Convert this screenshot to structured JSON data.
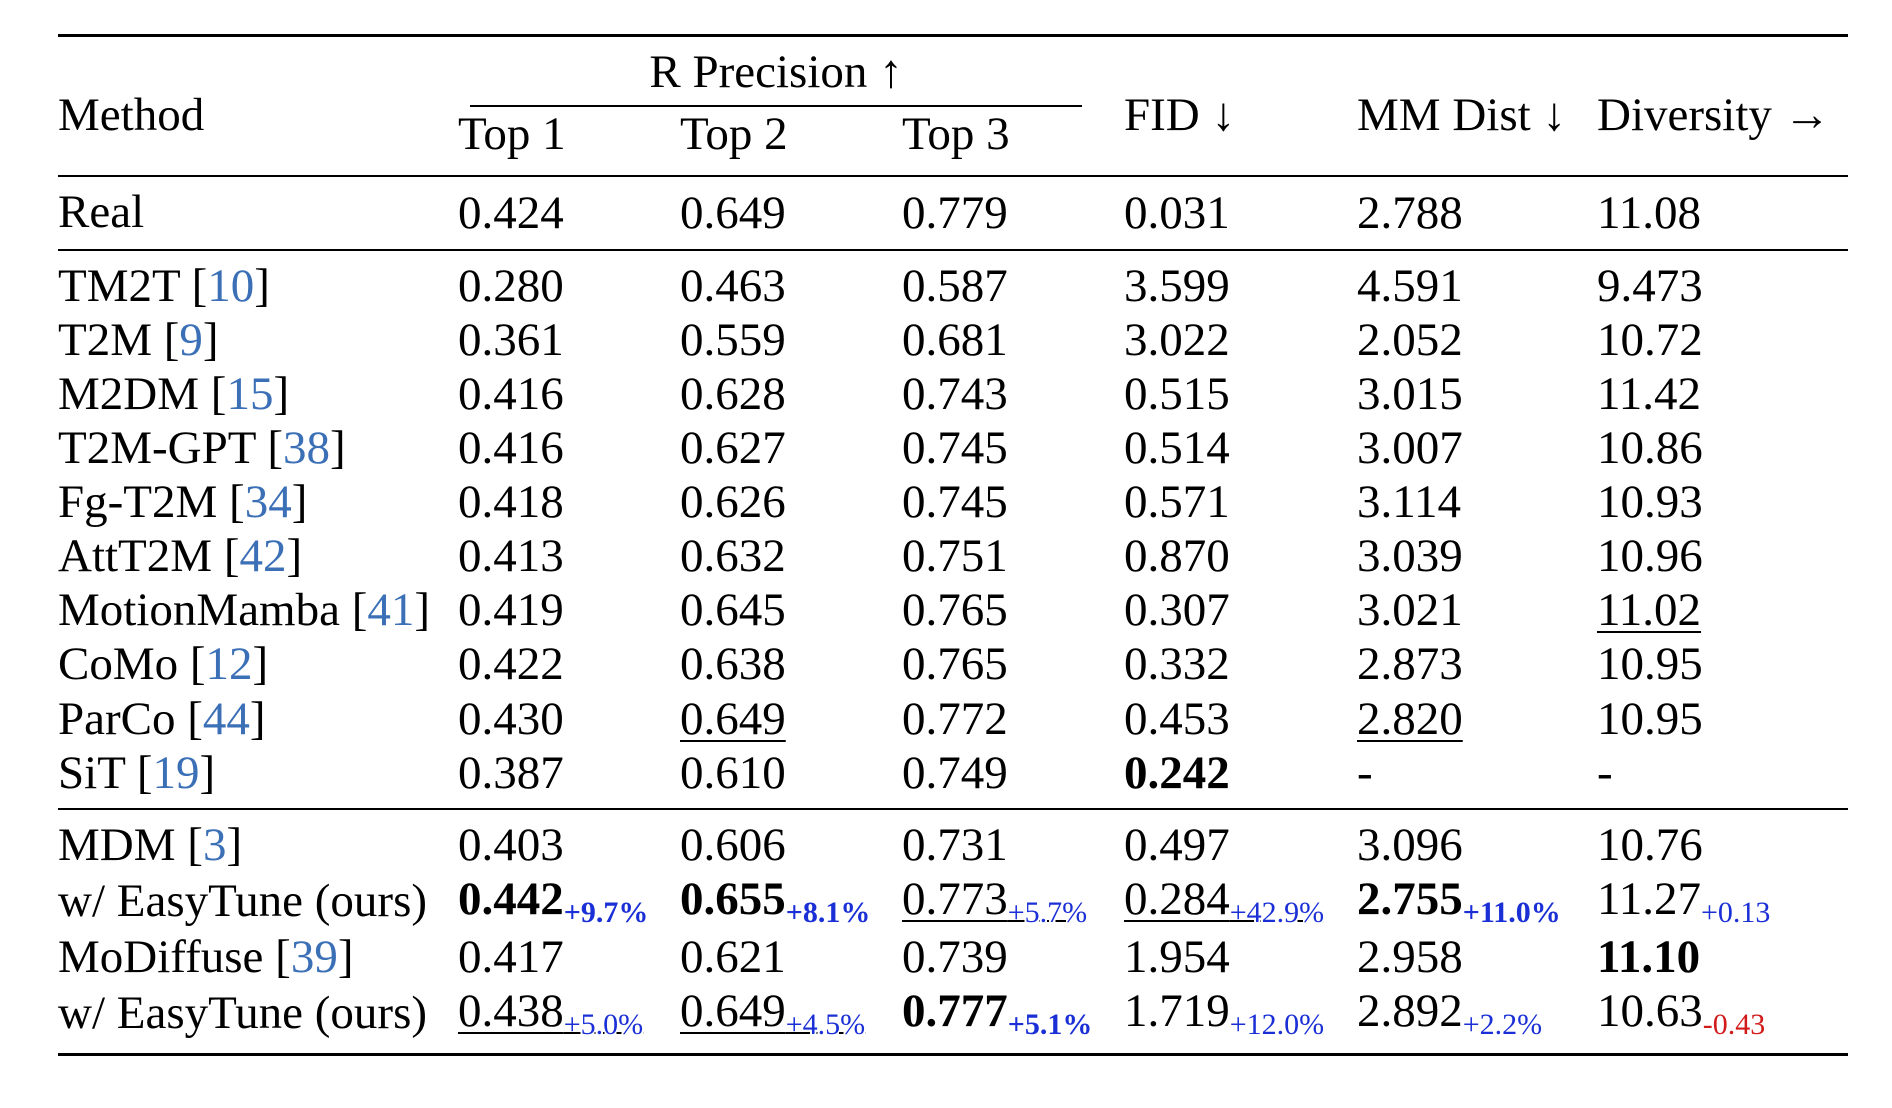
{
  "header": {
    "method": "Method",
    "r_precision": "R Precision ↑",
    "top1": "Top 1",
    "top2": "Top 2",
    "top3": "Top 3",
    "fid": "FID ↓",
    "mm_dist": "MM Dist ↓",
    "diversity": "Diversity →"
  },
  "real": {
    "name": "Real",
    "top1": "0.424",
    "top2": "0.649",
    "top3": "0.779",
    "fid": "0.031",
    "mm": "2.788",
    "div": "11.08"
  },
  "baselines": [
    {
      "name": "TM2T ",
      "cite": "10",
      "top1": "0.280",
      "top2": "0.463",
      "top3": "0.587",
      "fid": "3.599",
      "mm": "4.591",
      "div": "9.473"
    },
    {
      "name": "T2M ",
      "cite": "9",
      "top1": "0.361",
      "top2": "0.559",
      "top3": "0.681",
      "fid": "3.022",
      "mm": "2.052",
      "div": "10.72"
    },
    {
      "name": "M2DM ",
      "cite": "15",
      "top1": "0.416",
      "top2": "0.628",
      "top3": "0.743",
      "fid": "0.515",
      "mm": "3.015",
      "div": "11.42"
    },
    {
      "name": "T2M-GPT ",
      "cite": "38",
      "top1": "0.416",
      "top2": "0.627",
      "top3": "0.745",
      "fid": "0.514",
      "mm": "3.007",
      "div": "10.86"
    },
    {
      "name": "Fg-T2M ",
      "cite": "34",
      "top1": "0.418",
      "top2": "0.626",
      "top3": "0.745",
      "fid": "0.571",
      "mm": "3.114",
      "div": "10.93"
    },
    {
      "name": "AttT2M ",
      "cite": "42",
      "top1": "0.413",
      "top2": "0.632",
      "top3": "0.751",
      "fid": "0.870",
      "mm": "3.039",
      "div": "10.96"
    },
    {
      "name": "MotionMamba ",
      "cite": "41",
      "top1": "0.419",
      "top2": "0.645",
      "top3": "0.765",
      "fid": "0.307",
      "mm": "3.021",
      "div": "11.02"
    },
    {
      "name": "CoMo ",
      "cite": "12",
      "top1": "0.422",
      "top2": "0.638",
      "top3": "0.765",
      "fid": "0.332",
      "mm": "2.873",
      "div": "10.95"
    },
    {
      "name": "ParCo ",
      "cite": "44",
      "top1": "0.430",
      "top2": "0.649",
      "top3": "0.772",
      "fid": "0.453",
      "mm": "2.820",
      "div": "10.95"
    },
    {
      "name": "SiT ",
      "cite": "19",
      "top1": "0.387",
      "top2": "0.610",
      "top3": "0.749",
      "fid": "0.242",
      "mm": "-",
      "div": "-"
    }
  ],
  "mdm": {
    "name": "MDM ",
    "cite": "3",
    "top1": "0.403",
    "top2": "0.606",
    "top3": "0.731",
    "fid": "0.497",
    "mm": "3.096",
    "div": "10.76"
  },
  "mdm_easytune": {
    "name": "w/ EasyTune (ours)",
    "top1": "0.442",
    "top1_delta": "+9.7%",
    "top2": "0.655",
    "top2_delta": "+8.1%",
    "top3": "0.773",
    "top3_delta": "+5.7%",
    "fid": "0.284",
    "fid_delta": "+42.9%",
    "mm": "2.755",
    "mm_delta": "+11.0%",
    "div": "11.27",
    "div_delta": "+0.13"
  },
  "modiffuse": {
    "name": "MoDiffuse ",
    "cite": "39",
    "top1": "0.417",
    "top2": "0.621",
    "top3": "0.739",
    "fid": "1.954",
    "mm": "2.958",
    "div": "11.10"
  },
  "modiffuse_easytune": {
    "name": "w/ EasyTune (ours)",
    "top1": "0.438",
    "top1_delta": "+5.0%",
    "top2": "0.649",
    "top2_delta": "+4.5%",
    "top3": "0.777",
    "top3_delta": "+5.1%",
    "fid": "1.719",
    "fid_delta": "+12.0%",
    "mm": "2.892",
    "mm_delta": "+2.2%",
    "div": "10.63",
    "div_delta": "-0.43"
  },
  "colors": {
    "citation": "#3b6fb6",
    "improvement": "#1a2fd6",
    "decline": "#d11a1a"
  }
}
